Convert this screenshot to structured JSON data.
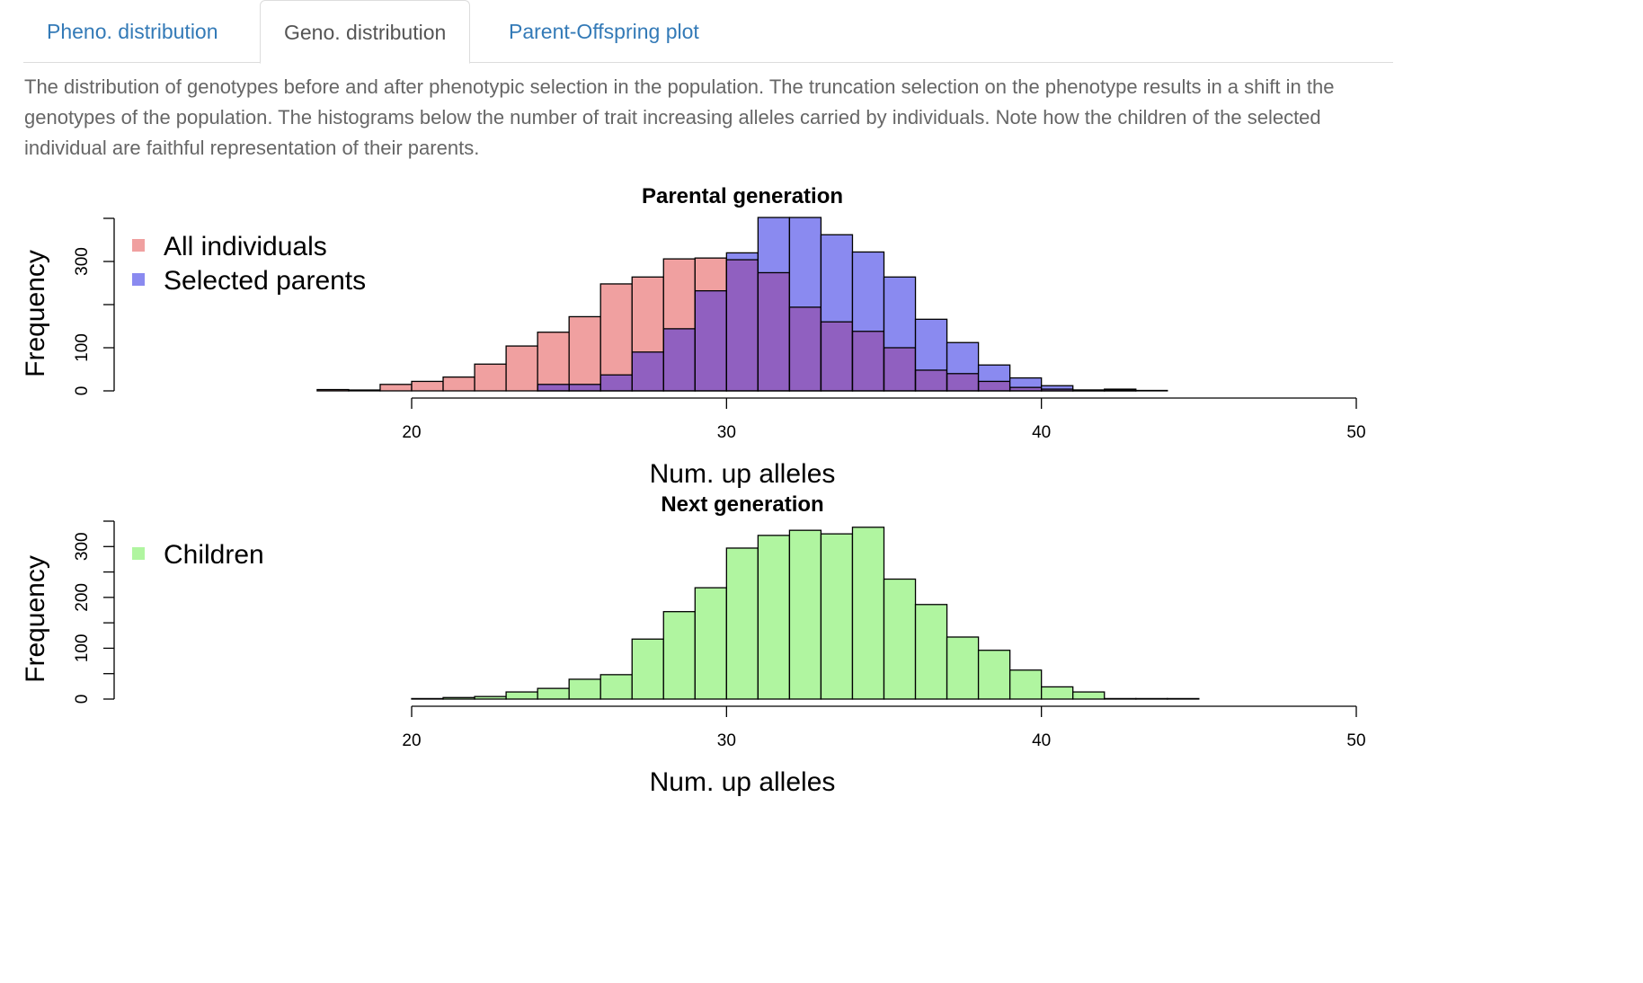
{
  "tabs": [
    {
      "label": "Pheno. distribution",
      "active": false
    },
    {
      "label": "Geno. distribution",
      "active": true
    },
    {
      "label": "Parent-Offspring plot",
      "active": false
    }
  ],
  "description": "The distribution of genotypes before and after phenotypic selection in the population. The truncation selection on the phenotype results in a shift in the genotypes of the population. The histograms below the number of trait increasing alleles carried by individuals. Note how the children of the selected individual are faithful representation of their parents.",
  "colors": {
    "all_individuals": "#f0a0a0",
    "selected_parents": "#8a8af0",
    "overlap": "#9060c0",
    "children": "#b0f5a0"
  },
  "chart_data": [
    {
      "type": "bar",
      "title": "Parental generation",
      "xlabel": "Num. up alleles",
      "ylabel": "Frequency",
      "xlim": [
        20,
        50
      ],
      "xticks": [
        20,
        30,
        40,
        50
      ],
      "ylim": [
        0,
        400
      ],
      "yticks": [
        0,
        100,
        200,
        300,
        400
      ],
      "ytick_labels": [
        "0",
        "100",
        "",
        "300",
        ""
      ],
      "legend_position": "top-left",
      "bin_starts": [
        17,
        18,
        19,
        20,
        21,
        22,
        23,
        24,
        25,
        26,
        27,
        28,
        29,
        30,
        31,
        32,
        33,
        34,
        35,
        36,
        37,
        38,
        39,
        40,
        41,
        42,
        43
      ],
      "series": [
        {
          "name": "All individuals",
          "color_key": "all_individuals",
          "values": [
            3,
            2,
            15,
            22,
            32,
            62,
            104,
            136,
            172,
            248,
            264,
            306,
            308,
            304,
            274,
            194,
            160,
            138,
            100,
            48,
            40,
            22,
            8,
            4,
            2,
            2,
            1
          ]
        },
        {
          "name": "Selected parents",
          "color_key": "selected_parents",
          "values": [
            0,
            0,
            0,
            0,
            0,
            0,
            0,
            15,
            15,
            37,
            90,
            144,
            232,
            320,
            402,
            402,
            362,
            322,
            264,
            166,
            112,
            60,
            30,
            12,
            2,
            4,
            0
          ]
        }
      ]
    },
    {
      "type": "bar",
      "title": "Next generation",
      "xlabel": "Num. up alleles",
      "ylabel": "Frequency",
      "xlim": [
        20,
        50
      ],
      "xticks": [
        20,
        30,
        40,
        50
      ],
      "ylim": [
        0,
        350
      ],
      "yticks": [
        0,
        50,
        100,
        150,
        200,
        250,
        300,
        350
      ],
      "ytick_labels": [
        "0",
        "",
        "100",
        "",
        "200",
        "",
        "300",
        ""
      ],
      "legend_position": "top-left",
      "bin_starts": [
        20,
        21,
        22,
        23,
        24,
        25,
        26,
        27,
        28,
        29,
        30,
        31,
        32,
        33,
        34,
        35,
        36,
        37,
        38,
        39,
        40,
        41,
        42,
        43,
        44
      ],
      "series": [
        {
          "name": "Children",
          "color_key": "children",
          "values": [
            1,
            3,
            5,
            14,
            21,
            39,
            48,
            118,
            172,
            219,
            297,
            322,
            332,
            325,
            338,
            236,
            186,
            122,
            96,
            57,
            24,
            14,
            1,
            1,
            1
          ]
        }
      ]
    }
  ]
}
